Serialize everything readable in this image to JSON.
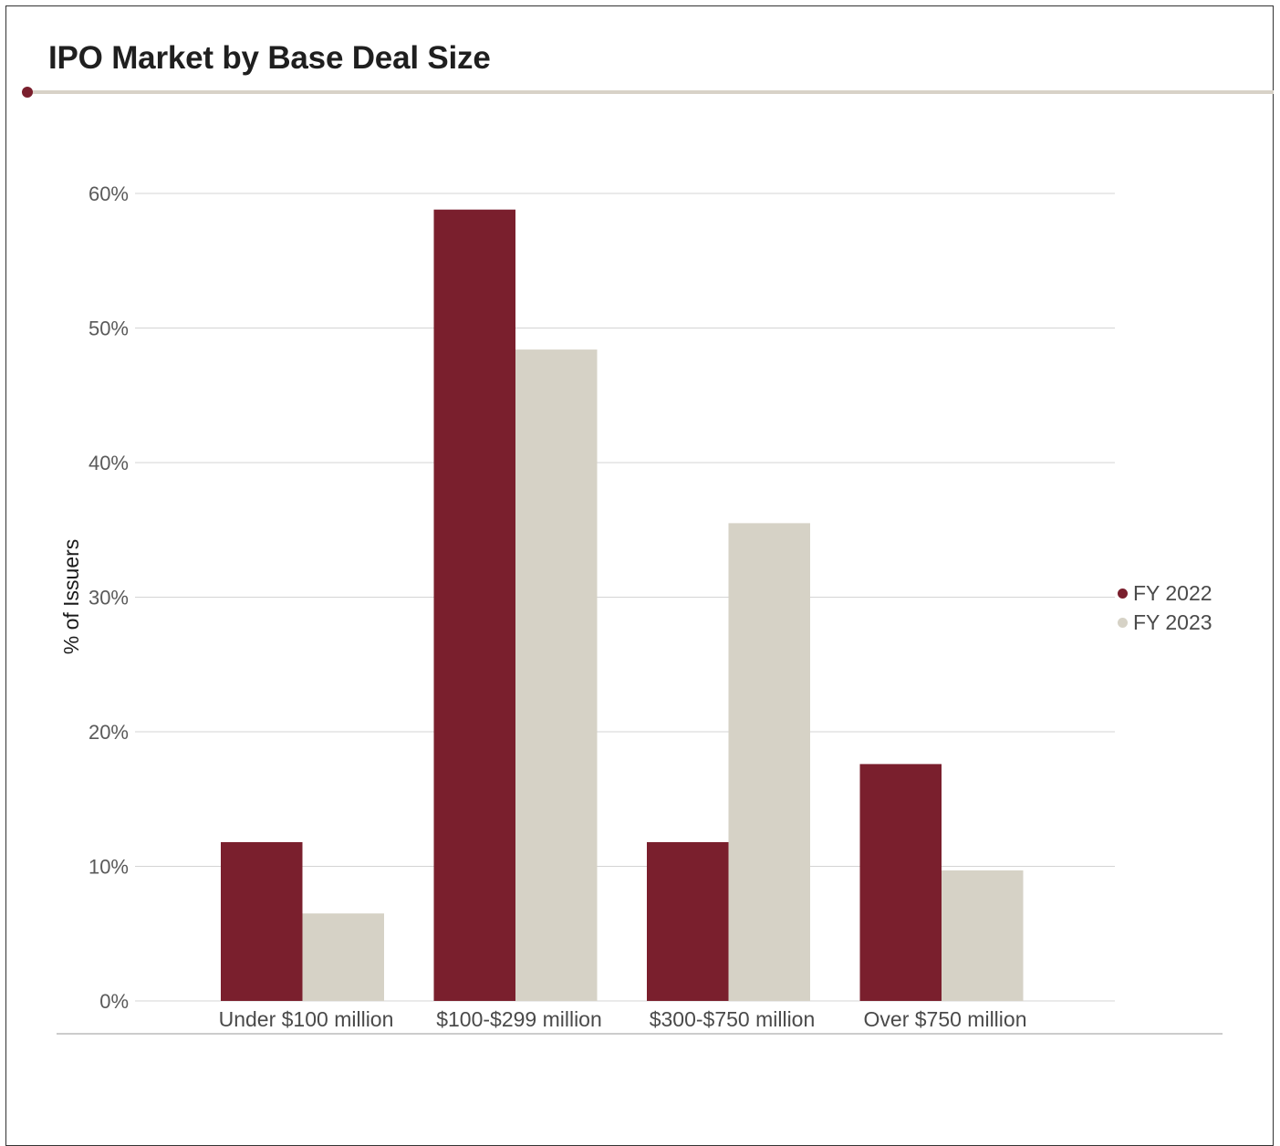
{
  "header": {
    "title": "IPO Market by Base Deal Size"
  },
  "chart_data": {
    "type": "bar",
    "title": "IPO Market by Base Deal Size",
    "xlabel": "",
    "ylabel": "% of Issuers",
    "categories": [
      "Under $100 million",
      "$100-$299 million",
      "$300-$750 million",
      "Over $750 million"
    ],
    "series": [
      {
        "name": "FY 2022",
        "color": "#7a1f2d",
        "values": [
          11.8,
          58.8,
          11.8,
          17.6
        ]
      },
      {
        "name": "FY 2023",
        "color": "#d6d2c6",
        "values": [
          6.5,
          48.4,
          35.5,
          9.7
        ]
      }
    ],
    "ylim": [
      0,
      60
    ],
    "yticks": [
      0,
      10,
      20,
      30,
      40,
      50,
      60
    ],
    "ytick_labels": [
      "0%",
      "10%",
      "20%",
      "30%",
      "40%",
      "50%",
      "60%"
    ],
    "grid": true,
    "legend_position": "right"
  }
}
